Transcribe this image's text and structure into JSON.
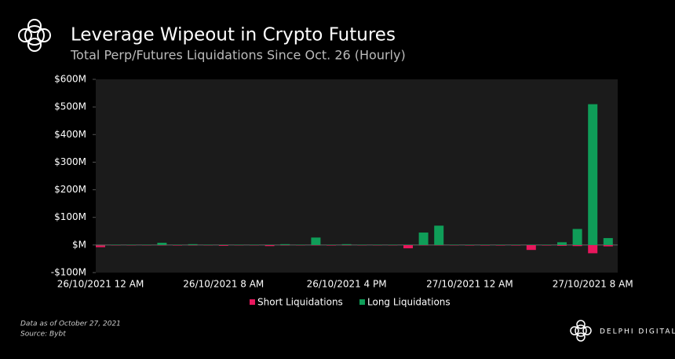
{
  "chart_data": {
    "type": "bar",
    "title": "Leverage Wipeout in Crypto Futures",
    "subtitle": "Total Perp/Futures Liquidations Since Oct. 26 (Hourly)",
    "categories": [
      "26/10/2021 12 AM",
      null,
      null,
      null,
      null,
      null,
      null,
      null,
      "26/10/2021 8 AM",
      null,
      null,
      null,
      null,
      null,
      null,
      null,
      "26/10/2021 4 PM",
      null,
      null,
      null,
      null,
      null,
      null,
      null,
      "27/10/2021 12 AM",
      null,
      null,
      null,
      null,
      null,
      null,
      null,
      "27/10/2021 8 AM",
      null
    ],
    "series": [
      {
        "name": "Short Liquidations",
        "color": "#e8175d",
        "values": [
          -8000000,
          -1000000,
          -1000000,
          -1000000,
          -1000000,
          -2000000,
          -1000000,
          -1000000,
          -3000000,
          -1000000,
          -1000000,
          -4000000,
          -1000000,
          -1000000,
          -1000000,
          -2000000,
          -1000000,
          -1000000,
          -1000000,
          -1000000,
          -12000000,
          -1000000,
          -1000000,
          -1000000,
          -2000000,
          -2000000,
          -2000000,
          -2000000,
          -18000000,
          -2000000,
          -3000000,
          -4000000,
          -30000000,
          -5000000
        ]
      },
      {
        "name": "Long Liquidations",
        "color": "#0f9d58",
        "values": [
          0,
          1000000,
          1000000,
          1000000,
          8000000,
          1000000,
          3000000,
          1000000,
          1000000,
          1000000,
          1000000,
          1000000,
          3000000,
          1000000,
          27000000,
          1000000,
          3000000,
          1000000,
          1000000,
          1000000,
          1000000,
          45000000,
          70000000,
          1000000,
          1000000,
          1000000,
          1000000,
          1000000,
          1000000,
          1000000,
          10000000,
          58000000,
          510000000,
          25000000
        ]
      }
    ],
    "ylim": [
      -100000000,
      600000000
    ],
    "yticks": [
      {
        "value": -100000000,
        "label": "-$100M"
      },
      {
        "value": 0,
        "label": "$M"
      },
      {
        "value": 100000000,
        "label": "$100M"
      },
      {
        "value": 200000000,
        "label": "$200M"
      },
      {
        "value": 300000000,
        "label": "$300M"
      },
      {
        "value": 400000000,
        "label": "$400M"
      },
      {
        "value": 500000000,
        "label": "$500M"
      },
      {
        "value": 600000000,
        "label": "$600M"
      }
    ],
    "legend": "bottom",
    "footnote": [
      "Data as of October 27, 2021",
      "Source: Bybt"
    ],
    "brand": "DELPHI DIGITAL"
  }
}
